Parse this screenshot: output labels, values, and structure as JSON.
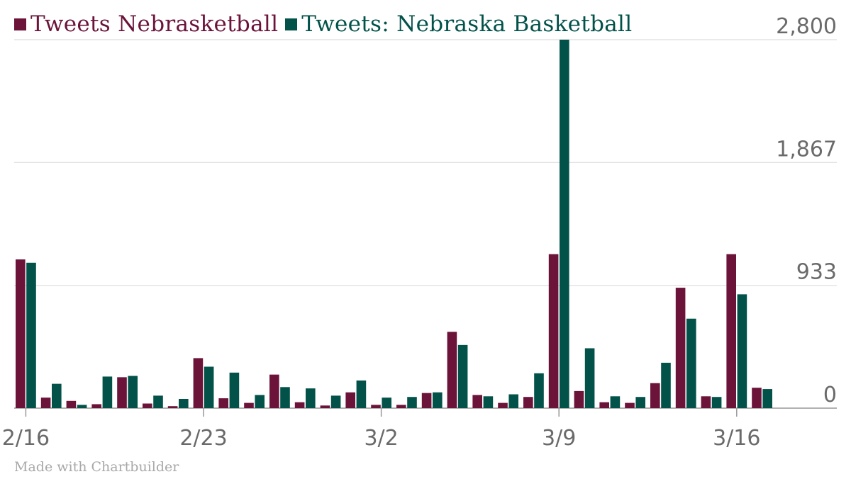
{
  "chart_data": {
    "type": "bar",
    "x_ticks": [
      "2/16",
      "2/23",
      "3/2",
      "3/9",
      "3/16"
    ],
    "y_ticks": [
      "0",
      "933",
      "1,867",
      "2,800"
    ],
    "ylim": [
      0,
      2800
    ],
    "grid": true,
    "legend_position": "top-left",
    "series": [
      {
        "name": "Tweets Nebrasketball",
        "color": "#6b1339",
        "values": [
          1130,
          80,
          55,
          30,
          235,
          35,
          15,
          380,
          75,
          40,
          255,
          45,
          20,
          120,
          25,
          25,
          115,
          580,
          100,
          40,
          85,
          1170,
          130,
          45,
          40,
          190,
          915,
          90,
          1170,
          155
        ]
      },
      {
        "name": "Tweets: Nebraska Basketball",
        "color": "#02524a",
        "values": [
          1105,
          185,
          25,
          240,
          245,
          95,
          70,
          315,
          270,
          100,
          160,
          150,
          95,
          210,
          80,
          85,
          120,
          480,
          90,
          105,
          265,
          2800,
          455,
          90,
          85,
          345,
          680,
          85,
          865,
          145
        ]
      }
    ]
  },
  "credit": "Made with Chartbuilder"
}
